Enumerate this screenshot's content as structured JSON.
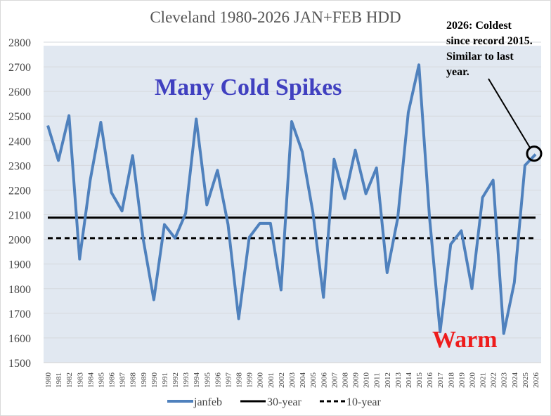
{
  "chart_data": {
    "type": "line",
    "title": "Cleveland 1980-2026 JAN+FEB HDD",
    "xlabel": "",
    "ylabel": "",
    "ylim": [
      1500,
      2800
    ],
    "yticks": [
      1500,
      1600,
      1700,
      1800,
      1900,
      2000,
      2100,
      2200,
      2300,
      2400,
      2500,
      2600,
      2700,
      2800
    ],
    "grid": true,
    "legend_position": "bottom",
    "x": [
      "1980",
      "1981",
      "1982",
      "1983",
      "1984",
      "1985",
      "1986",
      "1987",
      "1988",
      "1989",
      "1990",
      "1991",
      "1992",
      "1993",
      "1994",
      "1995",
      "1996",
      "1997",
      "1998",
      "1999",
      "2000",
      "2001",
      "2002",
      "2003",
      "2004",
      "2005",
      "2006",
      "2007",
      "2008",
      "2009",
      "2010",
      "2011",
      "2012",
      "2013",
      "2014",
      "2015",
      "2016",
      "2017",
      "2018",
      "2019",
      "2020",
      "2021",
      "2022",
      "2023",
      "2024",
      "2025",
      "2026"
    ],
    "series": [
      {
        "name": "janfeb",
        "color": "#4f81bd",
        "style": "solid",
        "values": [
          2462,
          2320,
          2502,
          1920,
          2240,
          2475,
          2190,
          2115,
          2340,
          2000,
          1755,
          2060,
          2005,
          2105,
          2488,
          2140,
          2280,
          2060,
          1678,
          2008,
          2065,
          2065,
          1795,
          2478,
          2355,
          2110,
          1765,
          2325,
          2165,
          2362,
          2185,
          2290,
          1865,
          2085,
          2515,
          2708,
          2090,
          1625,
          1980,
          2035,
          1800,
          2170,
          2240,
          1618,
          1825,
          2300,
          2345
        ]
      },
      {
        "name": "30-year",
        "color": "#000000",
        "style": "solid",
        "value": 2088
      },
      {
        "name": "10-year",
        "color": "#000000",
        "style": "dashed",
        "value": 2005
      }
    ],
    "annotations": [
      {
        "text": "Many Cold Spikes",
        "color": "#4040c0"
      },
      {
        "text": "Warm",
        "color": "#ee1c1c"
      },
      {
        "lines": [
          "2026: Coldest",
          "since record 2015.",
          "Similar to last",
          "year."
        ],
        "color": "#000000",
        "points_to": "2026"
      }
    ]
  }
}
